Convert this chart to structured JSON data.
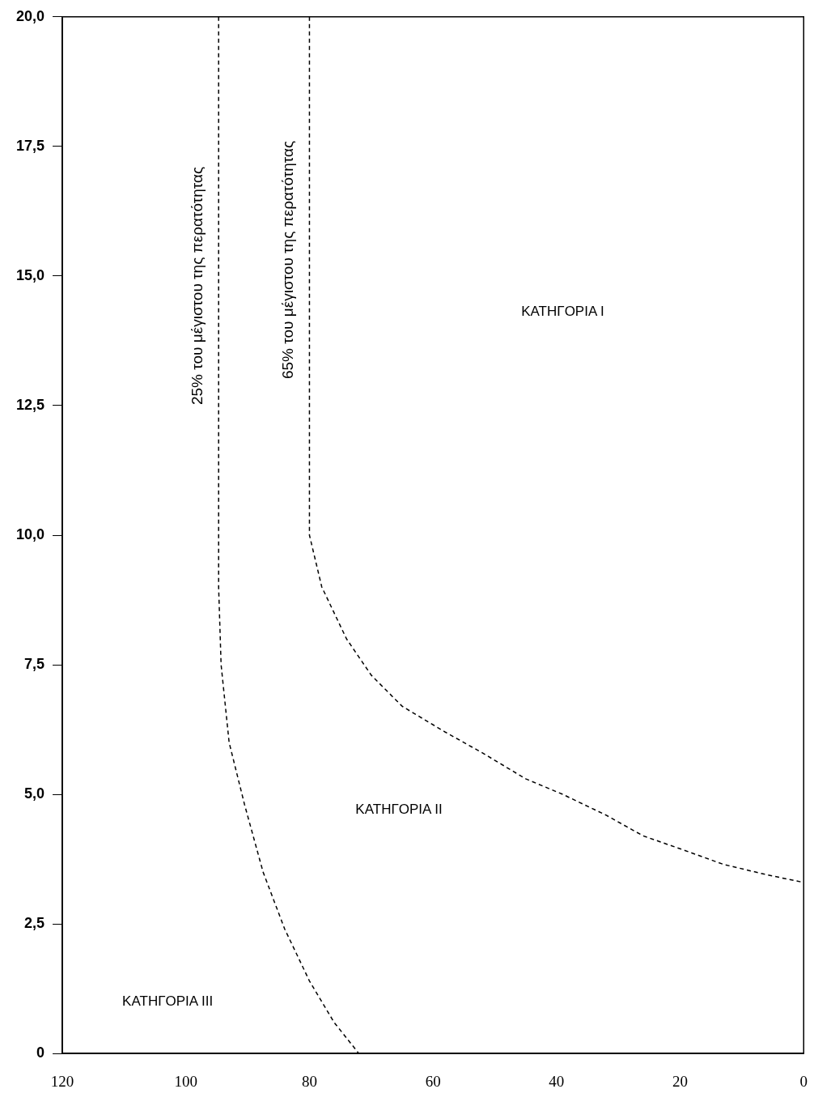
{
  "chart_data": {
    "type": "line",
    "line_style": "dashed",
    "marker": "none",
    "grid": false,
    "legend": false,
    "xlim": [
      120,
      0
    ],
    "xticks": [
      120,
      100,
      80,
      60,
      40,
      20,
      0
    ],
    "ylim": [
      0,
      20
    ],
    "yticks": [
      {
        "value": 0,
        "label": "0"
      },
      {
        "value": 2.5,
        "label": "2,5"
      },
      {
        "value": 5,
        "label": "5,0"
      },
      {
        "value": 7.5,
        "label": "7,5"
      },
      {
        "value": 10,
        "label": "10,0"
      },
      {
        "value": 12.5,
        "label": "12,5"
      },
      {
        "value": 15,
        "label": "15,0"
      },
      {
        "value": 17.5,
        "label": "17,5"
      },
      {
        "value": 20,
        "label": "20,0"
      }
    ],
    "series": [
      {
        "name": "25% του μέγιστου της περατότητας",
        "color": "#000000",
        "x": [
          94.7,
          94.7,
          94.3,
          93,
          90.5,
          87.5,
          84,
          80,
          76,
          72
        ],
        "values": [
          20,
          9,
          7.5,
          6,
          4.8,
          3.5,
          2.4,
          1.4,
          0.6,
          0
        ]
      },
      {
        "name": "65% του μέγιστου της περατότητας",
        "color": "#000000",
        "x": [
          80,
          80,
          78,
          74,
          70,
          65,
          58,
          52,
          45,
          39,
          32,
          26,
          20,
          13,
          6,
          0
        ],
        "values": [
          20,
          10,
          9,
          8,
          7.3,
          6.7,
          6.2,
          5.8,
          5.3,
          5,
          4.6,
          4.2,
          3.95,
          3.65,
          3.45,
          3.3
        ]
      }
    ],
    "annotations": [
      "ΚΑΤΗΓΟΡΙΑ I",
      "ΚΑΤΗΓΟΡΙΑ II",
      "ΚΑΤΗΓΟΡΙΑ III"
    ]
  }
}
